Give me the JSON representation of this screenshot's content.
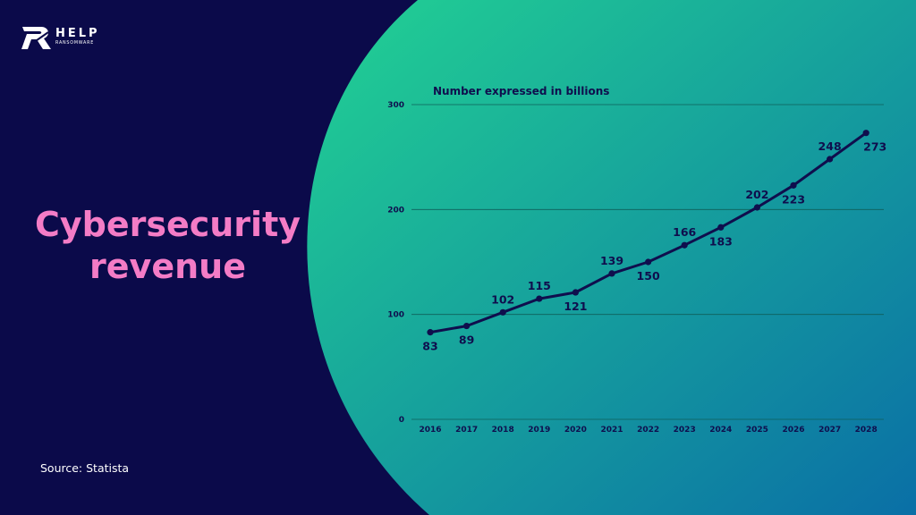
{
  "logo": {
    "word": "HELP",
    "subtitle": "RANSOMWARE"
  },
  "title_lines": [
    "Cybersecurity",
    "revenue"
  ],
  "source": "Source: Statista",
  "colors": {
    "background": "#0b0a4a",
    "panel_gradient_start": "#22d293",
    "panel_gradient_end": "#0a6fa6",
    "title": "#f47cc6",
    "line": "#0f0e4d",
    "gridline": "#0f5f5a"
  },
  "chart_data": {
    "type": "line",
    "title": "",
    "unit_label": "Number expressed in billions",
    "xlabel": "",
    "ylabel": "",
    "x": [
      "2016",
      "2017",
      "2018",
      "2019",
      "2020",
      "2021",
      "2022",
      "2023",
      "2024",
      "2025",
      "2026",
      "2027",
      "2028"
    ],
    "series": [
      {
        "values": [
          83,
          89,
          102,
          115,
          121,
          139,
          150,
          166,
          183,
          202,
          223,
          248,
          273
        ]
      }
    ],
    "label_position": [
      "below",
      "below",
      "above",
      "above",
      "below",
      "above",
      "below",
      "above",
      "below",
      "above",
      "below",
      "above",
      "below"
    ],
    "ylim": [
      0,
      300
    ],
    "yticks": [
      0,
      100,
      200,
      300
    ],
    "grid": "horizontal",
    "legend": "none"
  }
}
